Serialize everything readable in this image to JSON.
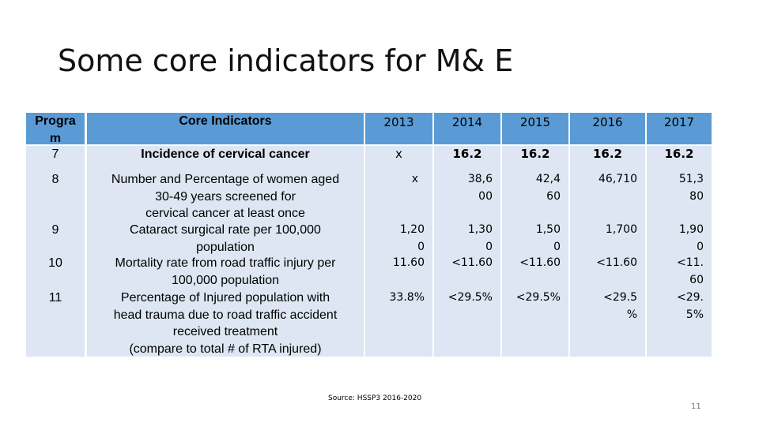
{
  "slide": {
    "title": "Some core indicators for M& E",
    "source": "Source: HSSP3 2016-2020",
    "page_number": "11"
  },
  "table": {
    "header": {
      "program": "Progra\nm",
      "indicator": "Core Indicators",
      "years": [
        "2013",
        "2014",
        "2015",
        "2016",
        "2017"
      ]
    },
    "rows": [
      {
        "program": "7",
        "indicator": "Incidence of cervical cancer",
        "values": [
          "x",
          "16.2",
          "16.2",
          "16.2",
          "16.2"
        ]
      },
      {
        "program": "8",
        "indicator": "Number and Percentage of women aged\n30-49 years screened for\ncervical cancer at least once",
        "values": [
          "x",
          "38,6\n00",
          "42,4\n60",
          "46,710",
          "51,3\n80"
        ]
      },
      {
        "program": "9",
        "indicator": "Cataract surgical rate per 100,000\npopulation",
        "values": [
          "1,20\n0",
          "1,30\n0",
          "1,50\n0",
          "1,700",
          "1,90\n0"
        ]
      },
      {
        "program": "10",
        "indicator": "Mortality rate from road traffic injury per\n100,000 population",
        "values": [
          "11.60",
          "<11.60",
          "<11.60",
          "<11.60",
          "<11.\n60"
        ]
      },
      {
        "program": "11",
        "indicator": "Percentage of Injured population with\nhead trauma due to road traffic accident\nreceived treatment\n(compare to total # of RTA injured)",
        "values": [
          "33.8%",
          "<29.5%",
          "<29.5%",
          "<29.5\n%",
          "<29.\n5%"
        ]
      }
    ]
  }
}
